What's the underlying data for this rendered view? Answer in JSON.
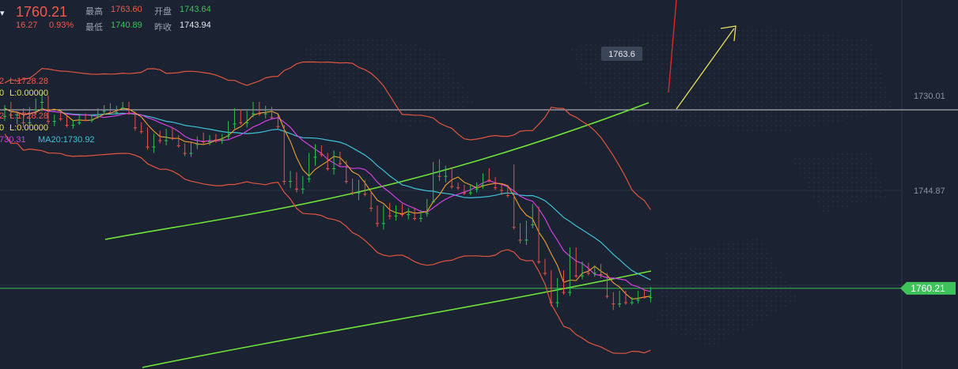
{
  "header": {
    "price": "1760.21",
    "change": "16.27",
    "change_pct": "0.93%",
    "high_label": "最高",
    "high_value": "1763.60",
    "open_label": "开盘",
    "open_value": "1743.64",
    "low_label": "最低",
    "low_value": "1740.89",
    "prev_close_label": "昨收",
    "prev_close_value": "1743.94"
  },
  "indicators": {
    "row1_prefix": "2",
    "row1": "L:1728.28",
    "row2_prefix": "0",
    "row2": "L:0.00000",
    "row3_prefix": "2",
    "row3": "L:1728.28",
    "row4_prefix": "0",
    "row4": "L:0.00000",
    "ma_prev": "730.31",
    "ma20": "MA20:1730.92"
  },
  "colors": {
    "bg": "#1b2231",
    "up": "#e8524a",
    "down": "#2fbf4f",
    "bollinger": "#e0553f",
    "channel": "#6fe33a",
    "ma_short": "#f0a030",
    "ma_mid": "#d040e0",
    "ma20": "#40c0d8",
    "price_line": "#3ec25a",
    "arrow_yellow": "#e8e060",
    "arrow_red": "#e02828"
  },
  "chart_data": {
    "type": "candlestick",
    "y_axis_ticks": [
      "1744.87",
      "1730.01"
    ],
    "last_price_label": "1760.21",
    "annotation": "1763.6",
    "ohlc": [
      [
        1733.2,
        1734.0,
        1731.5,
        1732.0
      ],
      [
        1732.0,
        1733.5,
        1731.0,
        1733.0
      ],
      [
        1733.0,
        1734.5,
        1732.5,
        1732.8
      ],
      [
        1732.8,
        1735.0,
        1732.0,
        1734.2
      ],
      [
        1734.2,
        1734.8,
        1731.8,
        1732.2
      ],
      [
        1732.2,
        1733.0,
        1730.5,
        1731.0
      ],
      [
        1731.0,
        1732.5,
        1729.5,
        1730.2
      ],
      [
        1730.2,
        1734.5,
        1730.0,
        1734.0
      ],
      [
        1734.0,
        1734.8,
        1733.0,
        1733.3
      ],
      [
        1733.3,
        1734.0,
        1732.6,
        1733.6
      ],
      [
        1733.6,
        1735.0,
        1733.2,
        1734.6
      ],
      [
        1734.6,
        1735.2,
        1733.8,
        1734.2
      ],
      [
        1734.2,
        1734.6,
        1733.0,
        1733.4
      ],
      [
        1733.4,
        1734.0,
        1732.8,
        1733.8
      ],
      [
        1733.8,
        1734.2,
        1733.0,
        1733.2
      ],
      [
        1733.2,
        1733.6,
        1732.0,
        1732.4
      ],
      [
        1732.4,
        1733.0,
        1731.5,
        1731.8
      ],
      [
        1731.8,
        1732.8,
        1731.2,
        1732.6
      ],
      [
        1732.6,
        1733.0,
        1731.6,
        1731.9
      ],
      [
        1731.9,
        1732.2,
        1731.0,
        1731.4
      ],
      [
        1731.4,
        1733.0,
        1731.0,
        1732.8
      ],
      [
        1732.8,
        1735.5,
        1732.5,
        1735.0
      ],
      [
        1735.0,
        1736.0,
        1734.2,
        1735.6
      ],
      [
        1735.6,
        1738.5,
        1735.0,
        1738.0
      ],
      [
        1738.0,
        1739.0,
        1736.0,
        1736.5
      ],
      [
        1736.5,
        1737.5,
        1735.5,
        1737.0
      ],
      [
        1737.0,
        1737.8,
        1735.2,
        1735.6
      ],
      [
        1735.6,
        1737.0,
        1735.0,
        1736.6
      ],
      [
        1736.6,
        1738.2,
        1736.2,
        1737.8
      ],
      [
        1737.8,
        1739.5,
        1737.5,
        1739.0
      ],
      [
        1739.0,
        1739.6,
        1737.2,
        1737.6
      ],
      [
        1737.6,
        1738.4,
        1736.4,
        1736.8
      ],
      [
        1736.8,
        1737.6,
        1735.8,
        1737.2
      ],
      [
        1737.2,
        1737.8,
        1736.2,
        1736.6
      ],
      [
        1736.6,
        1737.4,
        1736.0,
        1736.9
      ],
      [
        1736.9,
        1737.6,
        1736.0,
        1736.3
      ],
      [
        1736.3,
        1736.8,
        1734.0,
        1734.4
      ],
      [
        1734.4,
        1735.2,
        1732.0,
        1732.6
      ],
      [
        1732.6,
        1734.6,
        1732.2,
        1734.2
      ],
      [
        1734.2,
        1735.0,
        1732.4,
        1732.8
      ],
      [
        1732.8,
        1733.4,
        1731.0,
        1731.4
      ],
      [
        1731.4,
        1733.2,
        1731.0,
        1732.8
      ],
      [
        1732.8,
        1733.6,
        1731.6,
        1732.0
      ],
      [
        1732.0,
        1733.6,
        1731.8,
        1733.4
      ],
      [
        1733.4,
        1735.2,
        1733.0,
        1734.8
      ],
      [
        1734.8,
        1744.0,
        1734.6,
        1743.4
      ],
      [
        1743.4,
        1744.5,
        1741.8,
        1742.4
      ],
      [
        1742.4,
        1745.2,
        1742.0,
        1744.6
      ],
      [
        1744.6,
        1745.4,
        1742.6,
        1743.0
      ],
      [
        1743.0,
        1743.6,
        1739.0,
        1739.6
      ],
      [
        1739.6,
        1741.0,
        1737.6,
        1738.2
      ],
      [
        1738.2,
        1739.6,
        1737.8,
        1739.2
      ],
      [
        1739.2,
        1741.8,
        1739.0,
        1741.4
      ],
      [
        1741.4,
        1742.4,
        1738.6,
        1739.2
      ],
      [
        1739.2,
        1741.0,
        1738.8,
        1740.6
      ],
      [
        1740.6,
        1743.8,
        1740.2,
        1743.4
      ],
      [
        1743.4,
        1745.6,
        1743.0,
        1745.2
      ],
      [
        1745.2,
        1746.4,
        1743.2,
        1743.8
      ],
      [
        1743.8,
        1745.8,
        1743.2,
        1745.4
      ],
      [
        1745.4,
        1748.2,
        1745.0,
        1747.6
      ],
      [
        1747.6,
        1750.6,
        1747.2,
        1750.0
      ],
      [
        1750.0,
        1751.0,
        1747.2,
        1747.8
      ],
      [
        1747.8,
        1749.4,
        1746.8,
        1748.8
      ],
      [
        1748.8,
        1749.6,
        1747.2,
        1747.6
      ],
      [
        1747.6,
        1749.0,
        1747.0,
        1748.6
      ],
      [
        1748.6,
        1749.4,
        1747.6,
        1748.0
      ],
      [
        1748.0,
        1749.6,
        1747.6,
        1749.2
      ],
      [
        1749.2,
        1749.8,
        1748.0,
        1748.4
      ],
      [
        1748.4,
        1749.0,
        1746.2,
        1746.6
      ],
      [
        1746.6,
        1746.8,
        1740.4,
        1741.0
      ],
      [
        1741.0,
        1743.4,
        1740.0,
        1742.6
      ],
      [
        1742.6,
        1743.6,
        1741.0,
        1741.6
      ],
      [
        1741.6,
        1744.6,
        1741.4,
        1744.2
      ],
      [
        1744.2,
        1744.8,
        1743.6,
        1744.4
      ],
      [
        1744.4,
        1745.6,
        1744.0,
        1745.2
      ],
      [
        1745.2,
        1745.6,
        1744.0,
        1744.6
      ],
      [
        1744.6,
        1745.2,
        1743.6,
        1744.0
      ],
      [
        1744.0,
        1744.6,
        1742.2,
        1742.6
      ],
      [
        1742.6,
        1743.6,
        1741.4,
        1743.2
      ],
      [
        1743.2,
        1744.8,
        1742.8,
        1744.4
      ],
      [
        1744.4,
        1745.6,
        1743.8,
        1744.8
      ],
      [
        1744.8,
        1746.0,
        1744.2,
        1745.6
      ],
      [
        1745.6,
        1751.0,
        1740.8,
        1750.6
      ],
      [
        1750.6,
        1753.2,
        1750.0,
        1752.6
      ],
      [
        1752.6,
        1753.4,
        1749.6,
        1750.2
      ],
      [
        1750.2,
        1750.8,
        1747.0,
        1747.6
      ],
      [
        1747.6,
        1756.4,
        1747.4,
        1756.0
      ],
      [
        1756.0,
        1758.2,
        1755.6,
        1757.8
      ],
      [
        1757.8,
        1763.0,
        1757.4,
        1762.4
      ],
      [
        1762.4,
        1763.2,
        1758.6,
        1759.4
      ],
      [
        1759.4,
        1761.2,
        1757.4,
        1760.8
      ],
      [
        1760.8,
        1761.4,
        1753.8,
        1754.2
      ],
      [
        1754.2,
        1758.6,
        1753.8,
        1758.2
      ],
      [
        1758.2,
        1758.8,
        1756.0,
        1756.6
      ],
      [
        1756.6,
        1758.2,
        1756.2,
        1757.8
      ],
      [
        1757.8,
        1758.4,
        1756.6,
        1757.0
      ],
      [
        1757.0,
        1758.6,
        1756.4,
        1758.0
      ],
      [
        1758.0,
        1761.8,
        1757.8,
        1761.4
      ],
      [
        1761.4,
        1763.6,
        1760.8,
        1762.6
      ],
      [
        1762.6,
        1763.2,
        1760.6,
        1761.0
      ],
      [
        1761.0,
        1762.8,
        1760.6,
        1762.4
      ],
      [
        1762.4,
        1762.8,
        1761.6,
        1762.0
      ],
      [
        1762.0,
        1762.6,
        1760.6,
        1760.9
      ],
      [
        1760.9,
        1761.8,
        1760.4,
        1761.6
      ],
      [
        1761.6,
        1762.4,
        1760.0,
        1760.21
      ]
    ]
  }
}
